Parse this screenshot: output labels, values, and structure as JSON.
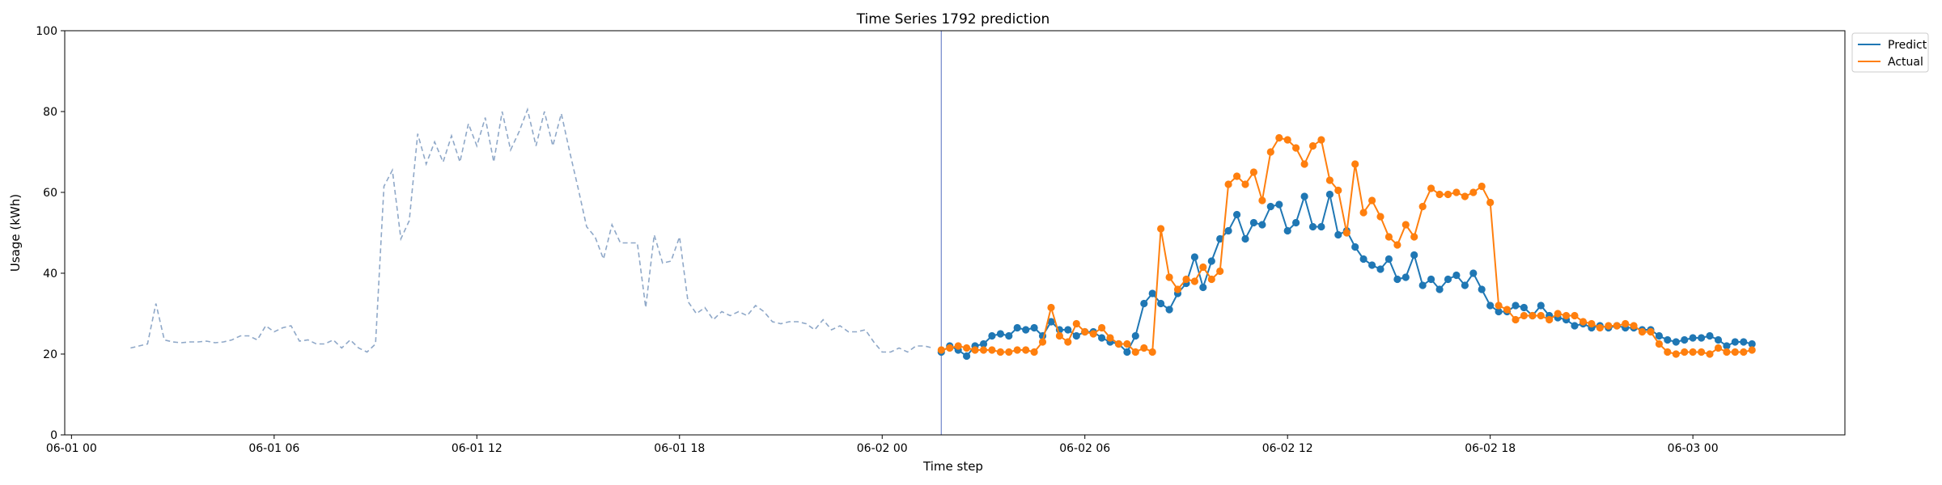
{
  "chart_data": {
    "type": "line",
    "title": "Time Series 1792 prediction",
    "xlabel": "Time step",
    "ylabel": "Usage (kWh)",
    "ylim": [
      0,
      100
    ],
    "yticks": [
      "0",
      "20",
      "40",
      "60",
      "80",
      "100"
    ],
    "xlim_hours": [
      -0.2,
      52.5
    ],
    "xticks": [
      {
        "label": "06-01 00",
        "hour": 0
      },
      {
        "label": "06-01 06",
        "hour": 6
      },
      {
        "label": "06-01 12",
        "hour": 12
      },
      {
        "label": "06-01 18",
        "hour": 18
      },
      {
        "label": "06-02 00",
        "hour": 24
      },
      {
        "label": "06-02 06",
        "hour": 30
      },
      {
        "label": "06-02 12",
        "hour": 36
      },
      {
        "label": "06-02 18",
        "hour": 42
      },
      {
        "label": "06-03 00",
        "hour": 48
      }
    ],
    "grid": false,
    "legend_position": "top-right",
    "forecast_start_hour": 25.75,
    "history": {
      "style": "dashed",
      "color": "#8fa8c8",
      "start_hour": 1.75,
      "step_hours": 0.25,
      "values": [
        21.5,
        22,
        22.5,
        32.5,
        23.5,
        23,
        22.8,
        23,
        23,
        23.2,
        22.8,
        23,
        23.5,
        24.5,
        24.5,
        23.5,
        27,
        25.5,
        26.5,
        27,
        23.2,
        23.5,
        22.5,
        22.5,
        23.5,
        21.5,
        23.5,
        21.5,
        20.5,
        22.5,
        61.5,
        65.5,
        48.5,
        53,
        74.5,
        67,
        72.5,
        67.5,
        74,
        67.5,
        77,
        71.5,
        78.5,
        67.5,
        80,
        70.5,
        75,
        80.5,
        71.5,
        80,
        71.5,
        79.5,
        70,
        61,
        51.5,
        49,
        43.5,
        52,
        47.5,
        47.5,
        47.5,
        31.5,
        49.5,
        42.5,
        43,
        49,
        33,
        30,
        31.5,
        28.5,
        30.5,
        29.5,
        30.5,
        29.5,
        32,
        30.5,
        28,
        27.5,
        28,
        28,
        27.5,
        26,
        28.5,
        26,
        27,
        25.5,
        25.5,
        26,
        23,
        20.5,
        20.5,
        21.5,
        20.5,
        22,
        22,
        21.5
      ]
    },
    "series": [
      {
        "name": "Predict",
        "color": "#1f77b4",
        "start_hour": 25.75,
        "step_hours": 0.25,
        "values": [
          20.5,
          22,
          21,
          19.5,
          22,
          22.5,
          24.5,
          25,
          24.5,
          26.5,
          26,
          26.5,
          24.5,
          28,
          26,
          26,
          24.5,
          25.5,
          25.5,
          24,
          23,
          22.5,
          20.5,
          24.5,
          32.5,
          35,
          32.5,
          31,
          35,
          37.5,
          44,
          36.5,
          43,
          48.5,
          50.5,
          54.5,
          48.5,
          52.5,
          52,
          56.5,
          57,
          50.5,
          52.5,
          59,
          51.5,
          51.5,
          59.5,
          49.5,
          50.5,
          46.5,
          43.5,
          42,
          41,
          43.5,
          38.5,
          39,
          44.5,
          37,
          38.5,
          36,
          38.5,
          39.5,
          37,
          40,
          36,
          32,
          30.5,
          30.5,
          32,
          31.5,
          29.5,
          32,
          29.5,
          29,
          28.5,
          27,
          27.5,
          26.5,
          27,
          26.5,
          27,
          26.5,
          26.5,
          26,
          26,
          24.5,
          23.5,
          23,
          23.5,
          24,
          24,
          24.5,
          23.5,
          22,
          23,
          23,
          22.5
        ]
      },
      {
        "name": "Actual",
        "color": "#ff7f0e",
        "start_hour": 25.75,
        "step_hours": 0.25,
        "values": [
          21,
          21.5,
          22,
          21.5,
          21,
          21,
          21,
          20.5,
          20.5,
          21,
          21,
          20.5,
          23,
          31.5,
          24.5,
          23,
          27.5,
          25.5,
          25,
          26.5,
          24,
          22.5,
          22.5,
          20.5,
          21.5,
          20.5,
          51,
          39,
          36,
          38.5,
          38,
          41.5,
          38.5,
          40.5,
          62,
          64,
          62,
          65,
          58,
          70,
          73.5,
          73,
          71,
          67,
          71.5,
          73,
          63,
          60.5,
          50,
          67,
          55,
          58,
          54,
          49,
          47,
          52,
          49,
          56.5,
          61,
          59.5,
          59.5,
          60,
          59,
          60,
          61.5,
          57.5,
          32,
          31,
          28.5,
          29.5,
          29.5,
          29.5,
          28.5,
          30,
          29.5,
          29.5,
          28,
          27.5,
          26.5,
          27,
          27,
          27.5,
          27,
          25.5,
          25.5,
          22.5,
          20.5,
          20,
          20.5,
          20.5,
          20.5,
          20,
          21.5,
          20.5,
          20.5,
          20.5,
          21
        ]
      }
    ]
  }
}
